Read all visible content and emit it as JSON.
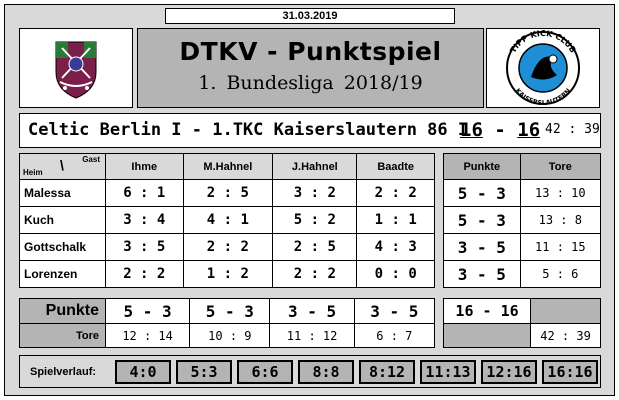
{
  "date": "31.03.2019",
  "header": {
    "title": "DTKV - Punktspiel",
    "subtitle": "1. Bundesliga  2018/19"
  },
  "logos": {
    "left": {
      "name": "celtic-berlin-crest",
      "colors": [
        "#7a1f4a",
        "#2a7a3a",
        "#3a3a9a"
      ]
    },
    "right": {
      "name": "tipp-kick-club-kaiserslautern",
      "text": "TIPP KICK CLUB KAISERSLAUTERN",
      "colors": [
        "#1e8fd6",
        "#000000"
      ]
    }
  },
  "match": {
    "title": "Celtic Berlin I - 1.TKC Kaiserslautern 86 I",
    "score_home": "16",
    "score_sep": "-",
    "score_away": "16",
    "tore": "42 : 39"
  },
  "table": {
    "corner_heim": "Heim",
    "corner_gast": "Gast",
    "corner_slash": "\\",
    "guests": [
      "Ihme",
      "M.Hahnel",
      "J.Hahnel",
      "Baadte"
    ],
    "rows": [
      {
        "name": "Malessa",
        "results": [
          "6 : 1",
          "2 : 5",
          "3 : 2",
          "2 : 2"
        ],
        "punkte": "5 - 3",
        "tore": "13 : 10"
      },
      {
        "name": "Kuch",
        "results": [
          "3 : 4",
          "4 : 1",
          "5 : 2",
          "1 : 1"
        ],
        "punkte": "5 - 3",
        "tore": "13 : 8"
      },
      {
        "name": "Gottschalk",
        "results": [
          "3 : 5",
          "2 : 2",
          "2 : 5",
          "4 : 3"
        ],
        "punkte": "3 - 5",
        "tore": "11 : 15"
      },
      {
        "name": "Lorenzen",
        "results": [
          "2 : 2",
          "1 : 2",
          "2 : 2",
          "0 : 0"
        ],
        "punkte": "3 - 5",
        "tore": "5 : 6"
      }
    ]
  },
  "side": {
    "punkte_header": "Punkte",
    "tore_header": "Tore"
  },
  "summary": {
    "punkte_label": "Punkte",
    "tore_label": "Tore",
    "punkte": [
      "5 - 3",
      "5 - 3",
      "3 - 5",
      "3 - 5"
    ],
    "tore": [
      "12 : 14",
      "10 : 9",
      "11 : 12",
      "6 : 7"
    ],
    "total_punkte": "16 - 16",
    "total_tore": "42 : 39"
  },
  "verlauf": {
    "label": "Spielverlauf:",
    "items": [
      "4:0",
      "5:3",
      "6:6",
      "8:8",
      "8:12",
      "11:13",
      "12:16",
      "16:16"
    ]
  }
}
